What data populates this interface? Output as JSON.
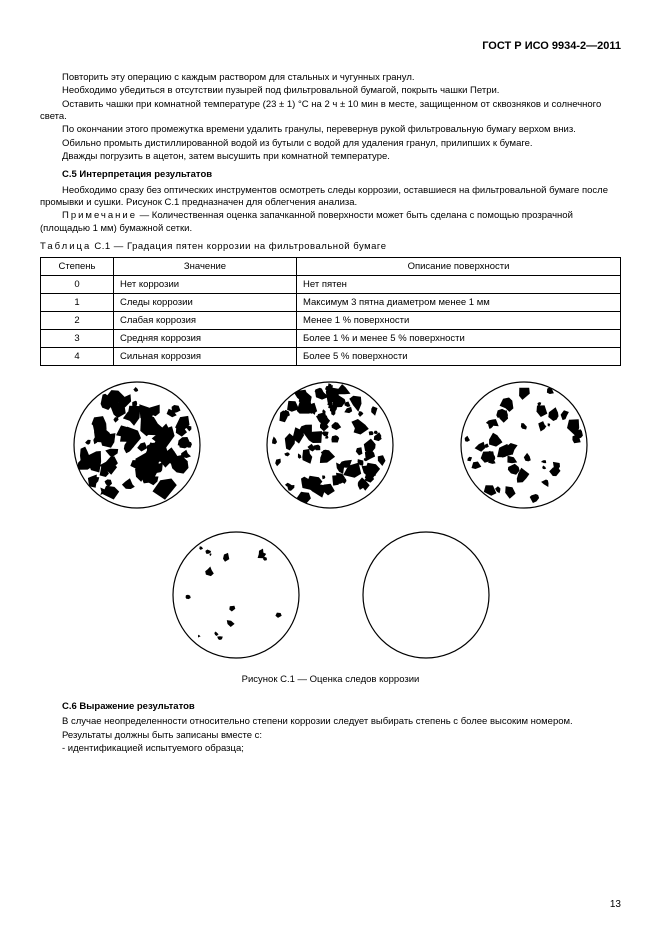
{
  "header": "ГОСТ Р ИСО 9934-2—2011",
  "para1": "Повторить эту операцию с каждым раствором для стальных и чугунных гранул.",
  "para2": "Необходимо убедиться в отсутствии пузырей под фильтровальной бумагой, покрыть чашки Петри.",
  "para3": "Оставить чашки при комнатной температуре (23 ± 1) °C на 2 ч ± 10 мин в месте, защищенном от сквозняков и солнечного света.",
  "para4": "По окончании этого промежутка времени удалить гранулы, перевернув рукой фильтровальную бумагу верхом вниз.",
  "para5": "Обильно промыть дистиллированной водой из бутыли с водой для удаления гранул, прилипших к бумаге.",
  "para6": "Дважды погрузить в ацетон, затем высушить при комнатной температуре.",
  "section_c5": "C.5 Интерпретация результатов",
  "para7": "Необходимо сразу без оптических инструментов осмотреть следы коррозии, оставшиеся на фильтровальной бумаге после промывки и сушки. Рисунок C.1 предназначен для облегчения анализа.",
  "note_label": "Примечание",
  "note_text": " — Количественная оценка запачканной поверхности может быть сделана с помощью прозрачной (площадью 1 мм) бумажной сетки.",
  "table_caption_label": "Таблица",
  "table_caption_text": "  C.1 — Градация пятен коррозии на фильтровальной бумаге",
  "table": {
    "headers": [
      "Степень",
      "Значение",
      "Описание поверхности"
    ],
    "rows": [
      [
        "0",
        "Нет коррозии",
        "Нет пятен"
      ],
      [
        "1",
        "Следы коррозии",
        "Максимум 3 пятна диаметром менее 1 мм"
      ],
      [
        "2",
        "Слабая коррозия",
        "Менее 1 % поверхности"
      ],
      [
        "3",
        "Средняя коррозия",
        "Более 1 % и менее 5 % поверхности"
      ],
      [
        "4",
        "Сильная коррозия",
        "Более 5 % поверхности"
      ]
    ],
    "col_widths": [
      "60px",
      "170px",
      "auto"
    ]
  },
  "figures": {
    "stroke": "#000000",
    "fill": "#000000",
    "bg": "#ffffff",
    "circle_radius": 63,
    "row1": [
      {
        "density": 0.55,
        "spot_count": 70,
        "spot_size_min": 3,
        "spot_size_max": 14
      },
      {
        "density": 0.35,
        "spot_count": 80,
        "spot_size_min": 2,
        "spot_size_max": 10
      },
      {
        "density": 0.14,
        "spot_count": 45,
        "spot_size_min": 2,
        "spot_size_max": 9
      }
    ],
    "row2": [
      {
        "density": 0.02,
        "spot_count": 14,
        "spot_size_min": 1,
        "spot_size_max": 5
      },
      {
        "density": 0.0,
        "spot_count": 0,
        "spot_size_min": 0,
        "spot_size_max": 0
      }
    ]
  },
  "figure_caption": "Рисунок C.1 — Оценка следов коррозии",
  "section_c6": "C.6 Выражение результатов",
  "para8": "В случае неопределенности относительно степени коррозии следует выбирать степень с более высоким номером.",
  "para9": "Результаты должны быть записаны вместе с:",
  "bullet1": "-  идентификацией испытуемого образца;",
  "page_number": "13"
}
